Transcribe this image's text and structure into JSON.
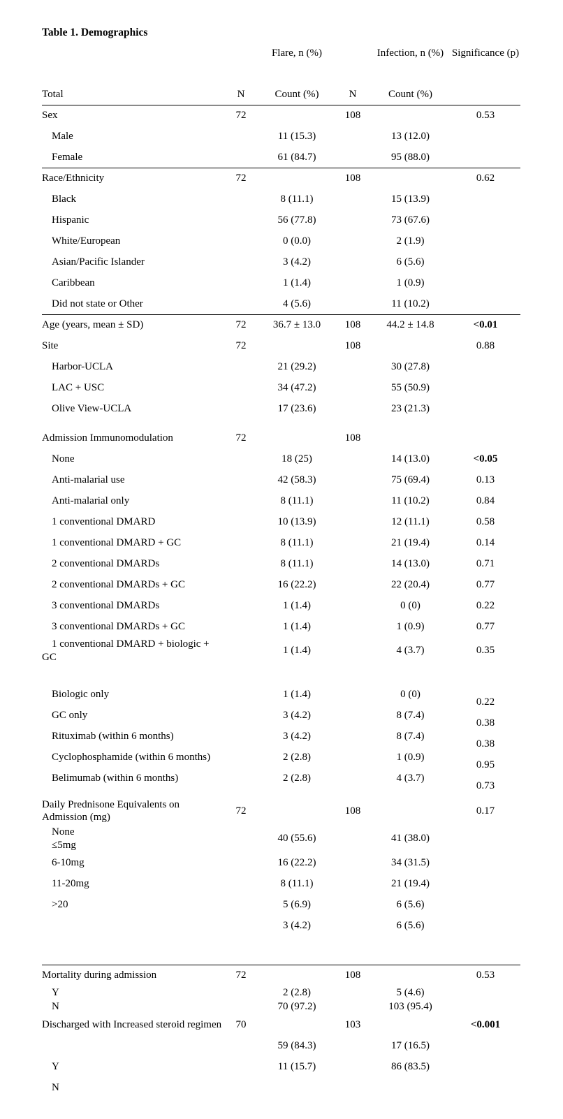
{
  "title": "Table 1. Demographics",
  "header": {
    "flare_group": "Flare, n (%)",
    "infection_group": "Infection, n (%)",
    "significance": "Significance (p)",
    "total": "Total",
    "n_flare": "N",
    "flare_count": "Count (%)",
    "n_infection": "N",
    "infection_count": "Count (%)"
  },
  "rows": [
    {
      "label": "Sex",
      "n_flare": "72",
      "n_infection": "108",
      "p": "0.53",
      "rule_above": true
    },
    {
      "label": "Male",
      "indent": true,
      "flare": "11 (15.3)",
      "infection": "13 (12.0)"
    },
    {
      "label": "Female",
      "indent": true,
      "flare": "61 (84.7)",
      "infection": "95 (88.0)"
    },
    {
      "label": "Race/Ethnicity",
      "n_flare": "72",
      "n_infection": "108",
      "p": "0.62",
      "rule_above": true
    },
    {
      "label": "Black",
      "indent": true,
      "flare": "8 (11.1)",
      "infection": "15 (13.9)"
    },
    {
      "label": "Hispanic",
      "indent": true,
      "flare": "56 (77.8)",
      "infection": "73 (67.6)"
    },
    {
      "label": "White/European",
      "indent": true,
      "flare": "0 (0.0)",
      "infection": "2 (1.9)"
    },
    {
      "label": "Asian/Pacific Islander",
      "indent": true,
      "flare": "3 (4.2)",
      "infection": "6 (5.6)"
    },
    {
      "label": "Caribbean",
      "indent": true,
      "flare": "1 (1.4)",
      "infection": "1 (0.9)"
    },
    {
      "label": "Did not state or Other",
      "indent": true,
      "flare": "4 (5.6)",
      "infection": "11 (10.2)"
    },
    {
      "label": "Age (years, mean ± SD)",
      "n_flare": "72",
      "flare": "36.7 ± 13.0",
      "n_infection": "108",
      "infection": "44.2 ± 14.8",
      "p": "<0.01",
      "p_bold": true,
      "rule_above": true
    },
    {
      "label": "Site",
      "n_flare": "72",
      "n_infection": "108",
      "p": "0.88"
    },
    {
      "label": "Harbor-UCLA",
      "indent": true,
      "flare": "21 (29.2)",
      "infection": "30 (27.8)"
    },
    {
      "label": "LAC + USC",
      "indent": true,
      "flare": "34 (47.2)",
      "infection": "55 (50.9)"
    },
    {
      "label": "Olive View-UCLA",
      "indent": true,
      "flare": "17 (23.6)",
      "infection": "23 (21.3)"
    },
    {
      "label": "Admission Immunomodulation",
      "n_flare": "72",
      "n_infection": "108",
      "gap": "sm"
    },
    {
      "label": "None",
      "indent": true,
      "flare": "18 (25)",
      "infection": "14 (13.0)",
      "p": "<0.05",
      "p_bold": true
    },
    {
      "label": "Anti-malarial use",
      "indent": true,
      "flare": "42 (58.3)",
      "infection": "75 (69.4)",
      "p": "0.13"
    },
    {
      "label": "Anti-malarial only",
      "indent": true,
      "flare": "8 (11.1)",
      "infection": "11 (10.2)",
      "p": "0.84"
    },
    {
      "label": "1 conventional DMARD",
      "indent": true,
      "flare": "10 (13.9)",
      "infection": "12 (11.1)",
      "p": "0.58"
    },
    {
      "label": "1 conventional DMARD + GC",
      "indent": true,
      "flare": "8 (11.1)",
      "infection": "21 (19.4)",
      "p": "0.14"
    },
    {
      "label": "2 conventional DMARDs",
      "indent": true,
      "flare": "8 (11.1)",
      "infection": "14 (13.0)",
      "p": "0.71"
    },
    {
      "label": "2 conventional DMARDs + GC",
      "indent": true,
      "flare": "16 (22.2)",
      "infection": "22 (20.4)",
      "p": "0.77"
    },
    {
      "label": "3 conventional DMARDs",
      "indent": true,
      "flare": "1 (1.4)",
      "infection": "0 (0)",
      "p": "0.22"
    },
    {
      "label": "3 conventional DMARDs + GC",
      "indent": true,
      "flare": "1 (1.4)",
      "infection": "1 (0.9)",
      "p": "0.77"
    },
    {
      "label": "1 conventional DMARD + biologic + GC",
      "indent": true,
      "flare": "1 (1.4)",
      "infection": "4 (3.7)",
      "p": "0.35"
    },
    {
      "label": "Biologic only",
      "indent": true,
      "flare": "1 (1.4)",
      "infection": "0 (0)",
      "p": "0.22",
      "p_offset": true,
      "gap": "md"
    },
    {
      "label": "GC only",
      "indent": true,
      "flare": "3 (4.2)",
      "infection": "8 (7.4)",
      "p": "0.38",
      "p_offset": true
    },
    {
      "label": "Rituximab (within 6 months)",
      "indent": true,
      "flare": "3 (4.2)",
      "infection": "8 (7.4)",
      "p": "0.38",
      "p_offset": true
    },
    {
      "label": "Cyclophosphamide (within 6 months)",
      "indent": true,
      "flare": "2 (2.8)",
      "infection": "1 (0.9)",
      "p": "0.95",
      "p_offset": true
    },
    {
      "label": "Belimumab (within 6 months)",
      "indent": true,
      "flare": "2 (2.8)",
      "infection": "4 (3.7)",
      "p": "0.73",
      "p_offset": true
    },
    {
      "label": "Daily Prednisone Equivalents on Admission (mg)",
      "n_flare": "72",
      "n_infection": "108",
      "p": "0.17",
      "gap": "sm"
    },
    {
      "label": "None\n≤5mg",
      "indent": true,
      "pre": true,
      "flare": "40 (55.6)",
      "infection": "41 (38.0)"
    },
    {
      "label": "6-10mg",
      "indent": true,
      "flare": "16 (22.2)",
      "infection": "34 (31.5)"
    },
    {
      "label": "11-20mg",
      "indent": true,
      "flare": "8 (11.1)",
      "infection": "21 (19.4)"
    },
    {
      "label": ">20",
      "indent": true,
      "flare": "5 (6.9)",
      "infection": "6 (5.6)"
    },
    {
      "label": "",
      "flare": "3 (4.2)",
      "infection": "6 (5.6)"
    },
    {
      "label": "Mortality during admission",
      "n_flare": "72",
      "n_infection": "108",
      "p": "0.53",
      "rule_above": true,
      "gap": "lg"
    },
    {
      "label": "Y",
      "indent": true,
      "flare": "2 (2.8)",
      "infection": "5 (4.6)",
      "tight": true
    },
    {
      "label": "N",
      "indent": true,
      "flare": "70 (97.2)",
      "infection": "103 (95.4)",
      "tight": true
    },
    {
      "label": "Discharged with Increased steroid regimen",
      "n_flare": "70",
      "n_infection": "103",
      "p": "<0.001",
      "p_bold": true
    },
    {
      "label": "",
      "flare": "59 (84.3)",
      "infection": "17 (16.5)"
    },
    {
      "label": "Y",
      "indent": true,
      "flare": "11 (15.7)",
      "infection": "86 (83.5)"
    },
    {
      "label": "N",
      "indent": true
    }
  ]
}
